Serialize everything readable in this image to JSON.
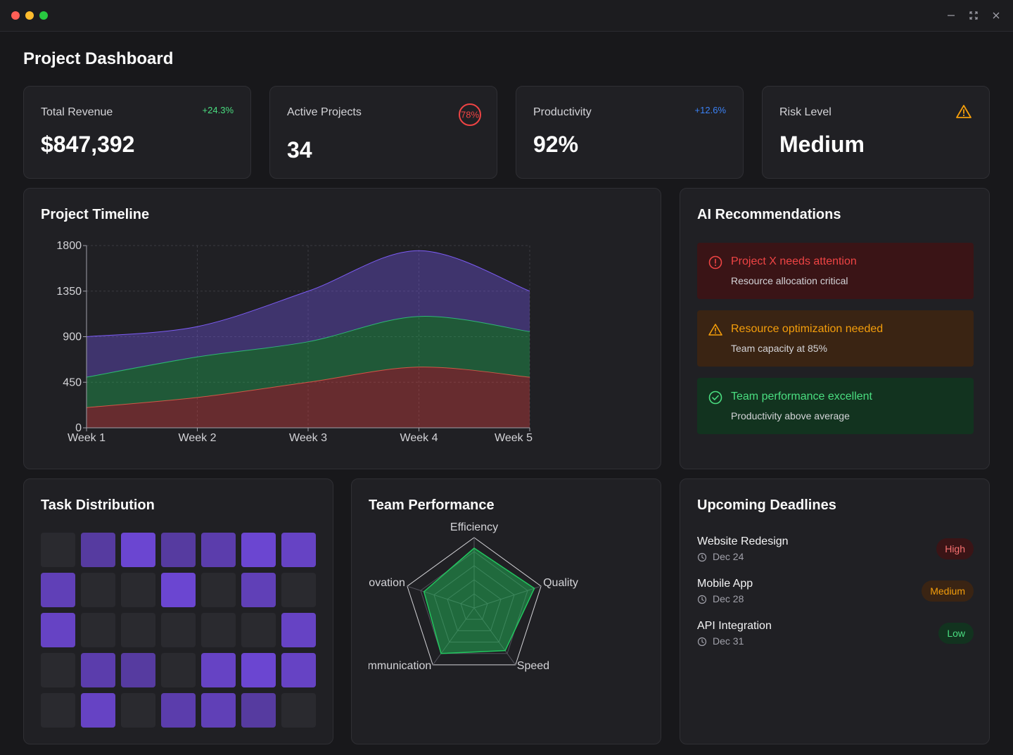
{
  "window": {
    "controls": [
      "minimize-icon",
      "maximize-icon",
      "close-icon"
    ]
  },
  "page": {
    "title": "Project Dashboard"
  },
  "stats": {
    "revenue": {
      "label": "Total Revenue",
      "value": "$847,392",
      "change": "+24.3%",
      "change_color": "#4ade80"
    },
    "projects": {
      "label": "Active Projects",
      "value": "34",
      "ring": "78%",
      "ring_color": "#ef4444"
    },
    "productivity": {
      "label": "Productivity",
      "value": "92%",
      "change": "+12.6%",
      "change_color": "#3b82f6"
    },
    "risk": {
      "label": "Risk Level",
      "value": "Medium",
      "icon": "warning-icon",
      "icon_color": "#f59e0b"
    }
  },
  "timeline": {
    "title": "Project Timeline",
    "chart_data": {
      "type": "area",
      "stacked": true,
      "categories": [
        "Week 1",
        "Week 2",
        "Week 3",
        "Week 4",
        "Week 5"
      ],
      "ylim": [
        0,
        1800
      ],
      "yticks": [
        "0",
        "450",
        "900",
        "1350",
        "1800"
      ],
      "grid": true,
      "series": [
        {
          "values": [
            200,
            300,
            450,
            600,
            500
          ],
          "color": "#ef4444"
        },
        {
          "values": [
            300,
            400,
            400,
            500,
            450
          ],
          "color": "#22c55e"
        },
        {
          "values": [
            400,
            300,
            500,
            650,
            400
          ],
          "color": "#7c5cf5"
        }
      ]
    }
  },
  "recommendations": {
    "title": "AI Recommendations",
    "items": [
      {
        "title": "Project X needs attention",
        "subtitle": "Resource allocation critical",
        "icon": "alert-circle-icon",
        "color": "#ef4444",
        "bg": "#3a1416"
      },
      {
        "title": "Resource optimization needed",
        "subtitle": "Team capacity at 85%",
        "icon": "warning-icon",
        "color": "#f59e0b",
        "bg": "#3a2413"
      },
      {
        "title": "Team performance excellent",
        "subtitle": "Productivity above average",
        "icon": "check-circle-icon",
        "color": "#4ade80",
        "bg": "#12331f"
      }
    ]
  },
  "task_distribution": {
    "title": "Task Distribution",
    "chart_data": {
      "type": "heatmap",
      "rows": 5,
      "cols": 7,
      "values": [
        [
          0,
          0.5,
          0.9,
          0.5,
          0.6,
          0.9,
          0.8
        ],
        [
          0.7,
          0,
          0,
          0.9,
          0,
          0.7,
          0
        ],
        [
          0.8,
          0,
          0,
          0,
          0,
          0,
          0.8
        ],
        [
          0,
          0.6,
          0.5,
          0,
          0.8,
          0.9,
          0.8
        ],
        [
          0,
          0.8,
          0,
          0.6,
          0.7,
          0.5,
          0
        ]
      ]
    }
  },
  "team_performance": {
    "title": "Team Performance",
    "chart_data": {
      "type": "radar",
      "axes": [
        "Efficiency",
        "Quality",
        "Speed",
        "Communication",
        "Innovation"
      ],
      "max": 100,
      "values": [
        85,
        90,
        75,
        80,
        75
      ]
    }
  },
  "deadlines": {
    "title": "Upcoming Deadlines",
    "items": [
      {
        "name": "Website Redesign",
        "date": "Dec 24",
        "priority": "High",
        "color": "#f87171",
        "bg": "#3a1416"
      },
      {
        "name": "Mobile App",
        "date": "Dec 28",
        "priority": "Medium",
        "color": "#f59e0b",
        "bg": "#3a2413"
      },
      {
        "name": "API Integration",
        "date": "Dec 31",
        "priority": "Low",
        "color": "#4ade80",
        "bg": "#12331f"
      }
    ]
  }
}
